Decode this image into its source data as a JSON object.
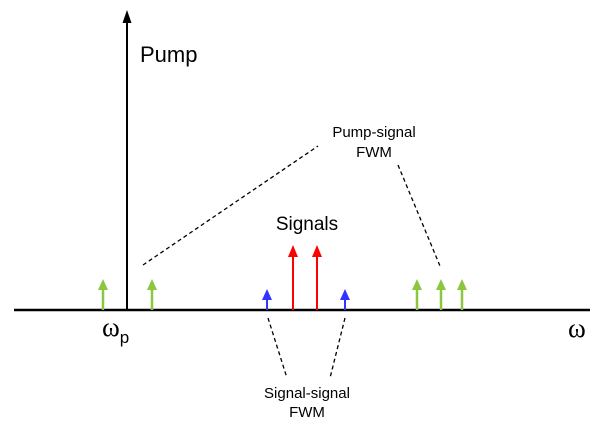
{
  "labels": {
    "pump": "Pump",
    "signals": "Signals",
    "pump_signal_fwm_line1": "Pump-signal",
    "pump_signal_fwm_line2": "FWM",
    "signal_signal_fwm_line1": "Signal-signal",
    "signal_signal_fwm_line2": "FWM",
    "omega_p_symbol": "ω",
    "omega_p_subscript": "p",
    "omega_axis": "ω"
  },
  "colors": {
    "axis": "#000000",
    "pump_arrow": "#000000",
    "signal_arrows": "#ff0000",
    "pump_signal_fwm_arrows": "#8cc63f",
    "signal_signal_fwm_arrows": "#3333ff",
    "leader_lines": "#000000"
  }
}
